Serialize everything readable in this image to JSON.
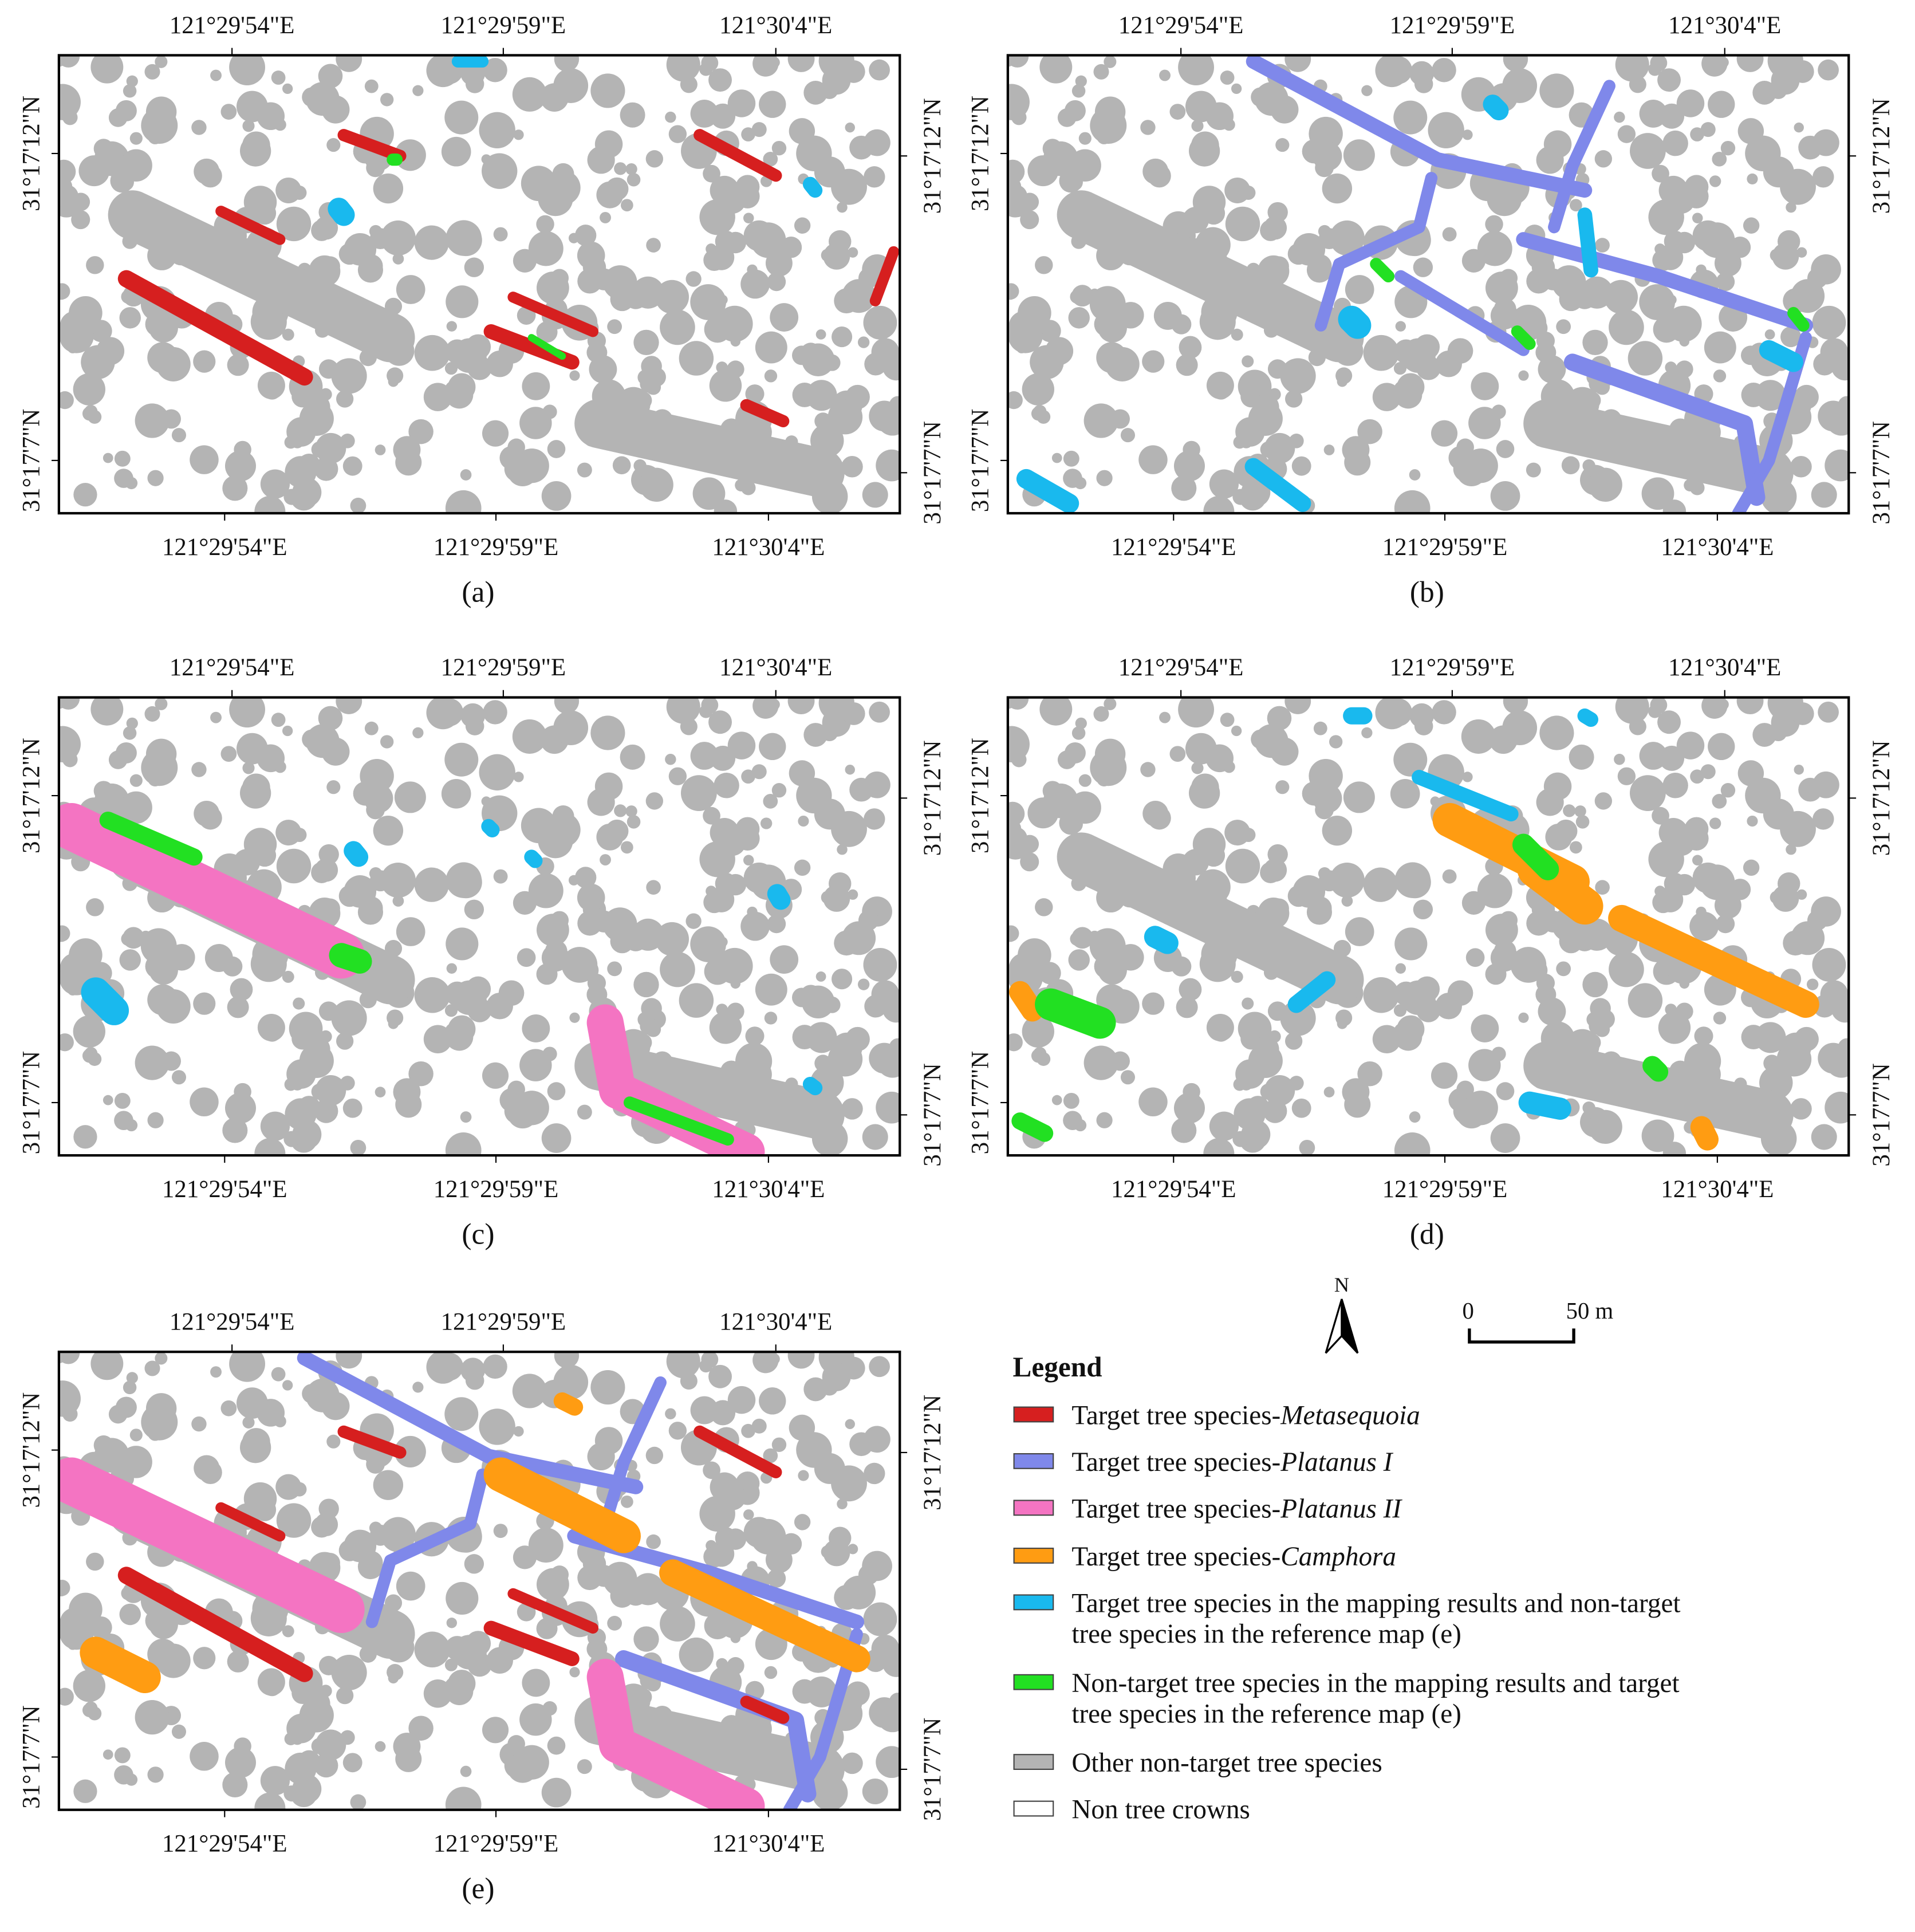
{
  "axes": {
    "lon": [
      "121°29'54\"E",
      "121°29'59\"E",
      "121°30'4\"E"
    ],
    "lat": [
      "31°17'12\"N",
      "31°17'7\"N"
    ]
  },
  "panels": [
    {
      "label": "(a)"
    },
    {
      "label": "(b)"
    },
    {
      "label": "(c)"
    },
    {
      "label": "(d)"
    },
    {
      "label": "(e)"
    }
  ],
  "north": "N",
  "scale": {
    "start": "0",
    "end": "50 m"
  },
  "legend": {
    "title": "Legend",
    "items": [
      {
        "prefix": "Target tree species-",
        "species": "Metasequoia",
        "color": "#d61f1f"
      },
      {
        "prefix": "Target tree species-",
        "species": "Platanus I",
        "color": "#7f88ea"
      },
      {
        "prefix": "Target tree species-",
        "species": "Platanus II",
        "color": "#f474c2"
      },
      {
        "prefix": "Target tree species-",
        "species": "Camphora",
        "color": "#ff9c12"
      },
      {
        "lines": [
          "Target tree species in the mapping results and non-target",
          "tree species in the reference map (e)"
        ],
        "color": "#19b9ee"
      },
      {
        "lines": [
          "Non-target tree species in the mapping results and target",
          "tree species in the reference map (e)"
        ],
        "color": "#22e022"
      },
      {
        "lines": [
          "Other non-target tree species"
        ],
        "color": "#b4b4b4"
      },
      {
        "lines": [
          "Non tree crowns"
        ],
        "color": "#ffffff"
      }
    ]
  }
}
